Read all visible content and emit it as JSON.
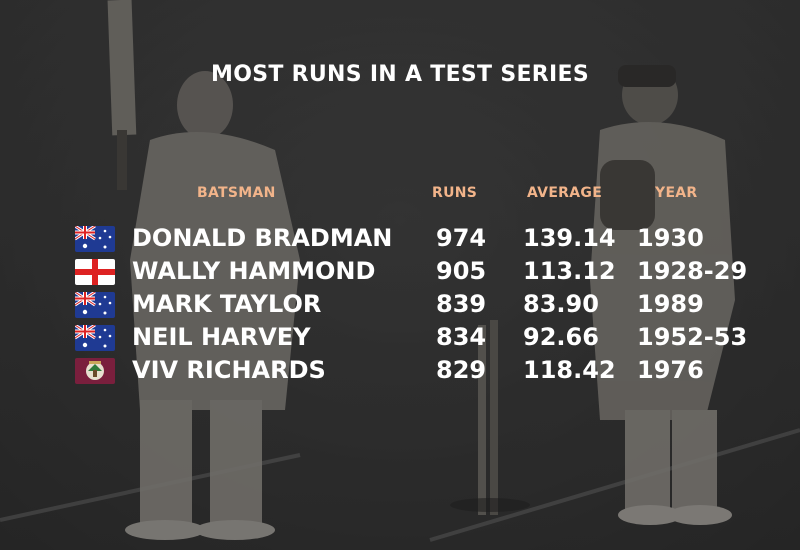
{
  "title": "MOST RUNS IN A TEST SERIES",
  "columns": {
    "batsman": "BATSMAN",
    "runs": "RUNS",
    "average": "AVERAGE",
    "year": "YEAR"
  },
  "rows": [
    {
      "flag": "australia-flag-icon",
      "name": "DONALD BRADMAN",
      "runs": "974",
      "average": "139.14",
      "year": "1930"
    },
    {
      "flag": "england-flag-icon",
      "name": "WALLY HAMMOND",
      "runs": "905",
      "average": "113.12",
      "year": "1928-29"
    },
    {
      "flag": "australia-flag-icon",
      "name": "MARK TAYLOR",
      "runs": "839",
      "average": "83.90",
      "year": "1989"
    },
    {
      "flag": "australia-flag-icon",
      "name": "NEIL HARVEY",
      "runs": "834",
      "average": "92.66",
      "year": "1952-53"
    },
    {
      "flag": "west-indies-flag-icon",
      "name": "VIV RICHARDS",
      "runs": "829",
      "average": "118.42",
      "year": "1976"
    }
  ],
  "colors": {
    "header_accent": "#f2b48a",
    "text": "#ffffff"
  }
}
